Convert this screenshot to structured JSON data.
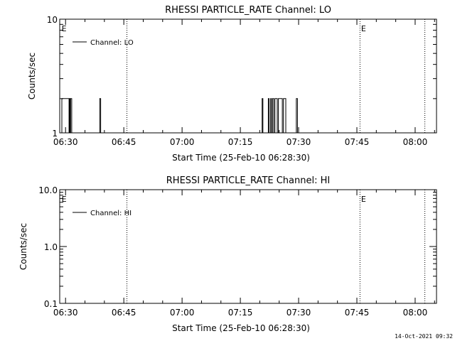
{
  "chart_data": [
    {
      "type": "line",
      "title": "RHESSI PARTICLE_RATE Channel: LO",
      "xlabel": "Start Time (25-Feb-10 06:28:30)",
      "ylabel": "Counts/sec",
      "yscale": "log",
      "ylim": [
        1,
        10
      ],
      "y_ticks": [
        "1",
        "10"
      ],
      "x_range_minutes": [
        0,
        97
      ],
      "x_ticks": [
        "06:30",
        "06:45",
        "07:00",
        "07:15",
        "07:30",
        "07:45",
        "08:00"
      ],
      "x_tick_minutes": [
        1.5,
        16.5,
        31.5,
        46.5,
        61.5,
        76.5,
        91.5
      ],
      "legend": "top-left",
      "series": [
        {
          "name": "Channel: LO",
          "x_minutes": [
            0,
            0.55,
            0.55,
            1.3,
            1.3,
            2.4,
            2.4,
            2.5,
            2.5,
            2.65,
            2.65,
            2.8,
            2.8,
            3.1,
            3.1,
            3.2,
            3.2,
            10.3,
            10.3,
            10.55,
            10.55,
            52.1,
            52.1,
            52.3,
            52.3,
            53.7,
            53.7,
            53.9,
            53.9,
            54.3,
            54.3,
            54.5,
            54.5,
            54.8,
            54.8,
            55.1,
            55.1,
            55.4,
            55.4,
            56.0,
            56.0,
            56.3,
            56.3,
            57.3,
            57.3,
            57.6,
            57.6,
            58.2,
            58.2,
            60.9,
            60.9,
            61.2,
            61.2,
            97
          ],
          "y_values": [
            1,
            1,
            2,
            2,
            2,
            2,
            1,
            1,
            2,
            2,
            1,
            1,
            2,
            2,
            1,
            1,
            1,
            1,
            2,
            2,
            1,
            1,
            2,
            2,
            1,
            1,
            2,
            2,
            1,
            1,
            2,
            2,
            1,
            1,
            2,
            2,
            1,
            1,
            2,
            2,
            1,
            1,
            2,
            2,
            1,
            1,
            2,
            2,
            1,
            1,
            2,
            2,
            1,
            1
          ]
        }
      ],
      "markers": [
        {
          "label": "E",
          "x_minutes": 0.3
        },
        {
          "label": "E",
          "x_minutes": 77.4
        }
      ],
      "vlines_minutes": [
        17.3,
        77.3,
        94.0
      ]
    },
    {
      "type": "line",
      "title": "RHESSI PARTICLE_RATE Channel: HI",
      "xlabel": "Start Time (25-Feb-10 06:28:30)",
      "ylabel": "Counts/sec",
      "yscale": "log",
      "ylim": [
        0.1,
        10
      ],
      "y_ticks": [
        "0.1",
        "1.0",
        "10.0"
      ],
      "x_range_minutes": [
        0,
        97
      ],
      "x_ticks": [
        "06:30",
        "06:45",
        "07:00",
        "07:15",
        "07:30",
        "07:45",
        "08:00"
      ],
      "x_tick_minutes": [
        1.5,
        16.5,
        31.5,
        46.5,
        61.5,
        76.5,
        91.5
      ],
      "legend": "top-left",
      "series": [
        {
          "name": "Channel: HI",
          "x_minutes": [],
          "y_values": []
        }
      ],
      "markers": [
        {
          "label": "E",
          "x_minutes": 0.3
        },
        {
          "label": "E",
          "x_minutes": 77.4
        }
      ],
      "vlines_minutes": [
        17.3,
        77.3,
        94.0
      ]
    }
  ],
  "footer": {
    "timestamp": "14-Oct-2021 09:32"
  }
}
